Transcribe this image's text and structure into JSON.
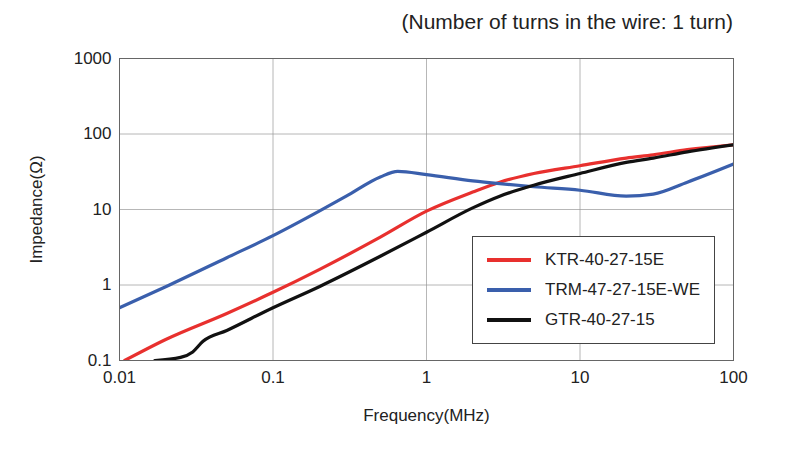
{
  "chart_data": {
    "type": "line",
    "title": "(Number of turns in the wire: 1 turn)",
    "x_label": "Frequency(MHz)",
    "y_label": "Impedance(Ω)",
    "log": true,
    "grid": true,
    "legend": "lower right",
    "xlim": [
      0.01,
      100
    ],
    "xticks": [
      0.01,
      0.1,
      1,
      10,
      100
    ],
    "ylim": [
      0.1,
      1000
    ],
    "yticks": [
      0.1,
      1,
      10,
      100,
      1000
    ],
    "series": [
      {
        "name": "KTR-40-27-15E",
        "color": "#e8302e",
        "x": [
          0.0108,
          0.02,
          0.05,
          0.1,
          0.2,
          0.5,
          1,
          2,
          3,
          5,
          10,
          20,
          30,
          50,
          100
        ],
        "values": [
          0.1,
          0.19,
          0.42,
          0.8,
          1.6,
          4.3,
          9.5,
          17,
          23,
          30,
          38,
          48,
          53,
          62,
          72
        ]
      },
      {
        "name": "TRM-47-27-15E-WE",
        "color": "#3a5fac",
        "x": [
          0.01,
          0.02,
          0.05,
          0.1,
          0.2,
          0.3,
          0.5,
          0.65,
          1,
          2,
          3,
          5,
          10,
          20,
          30,
          50,
          100
        ],
        "values": [
          0.5,
          0.95,
          2.3,
          4.5,
          9.5,
          15,
          27,
          32,
          29,
          24,
          22,
          20,
          18,
          15,
          16,
          23,
          40
        ]
      },
      {
        "name": "GTR-40-27-15",
        "color": "#111111",
        "x": [
          0.017,
          0.025,
          0.03,
          0.035,
          0.05,
          0.1,
          0.2,
          0.5,
          1,
          2,
          3,
          5,
          10,
          20,
          30,
          50,
          100
        ],
        "values": [
          0.1,
          0.11,
          0.13,
          0.18,
          0.25,
          0.5,
          0.95,
          2.4,
          5,
          10.5,
          15,
          21,
          30,
          42,
          48,
          58,
          72
        ]
      }
    ]
  }
}
